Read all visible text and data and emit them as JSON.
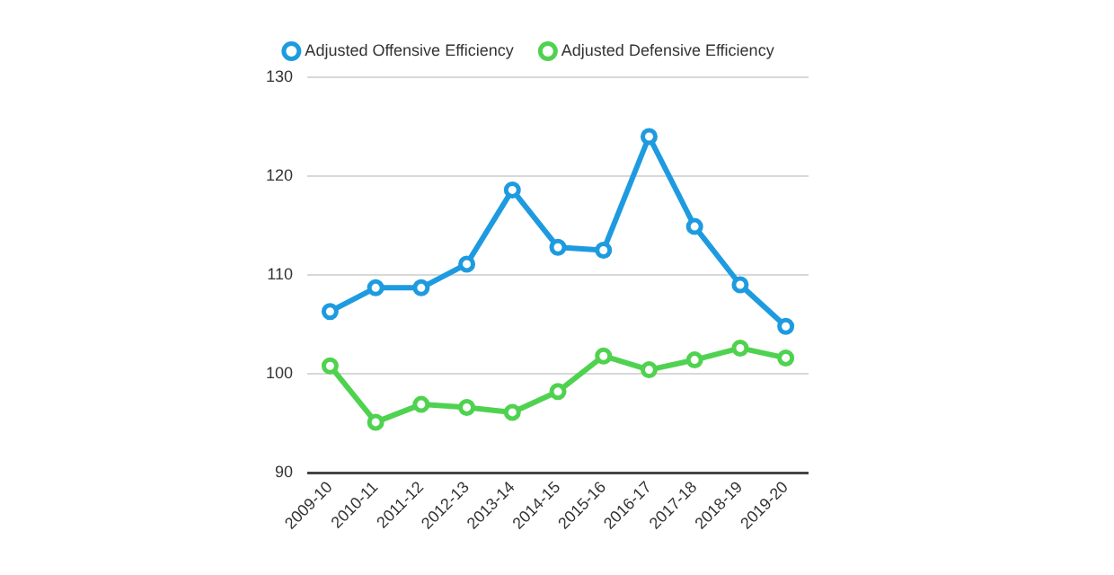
{
  "chart_data": {
    "type": "line",
    "categories": [
      "2009-10",
      "2010-11",
      "2011-12",
      "2012-13",
      "2013-14",
      "2014-15",
      "2015-16",
      "2016-17",
      "2017-18",
      "2018-19",
      "2019-20"
    ],
    "series": [
      {
        "name": "Adjusted Offensive Efficiency",
        "color": "#1e9be0",
        "values": [
          106.3,
          108.7,
          108.7,
          111.1,
          118.6,
          112.8,
          112.5,
          124.0,
          114.9,
          109.0,
          104.8
        ]
      },
      {
        "name": "Adjusted Defensive Efficiency",
        "color": "#4fd24f",
        "values": [
          100.8,
          95.1,
          96.9,
          96.6,
          96.1,
          98.2,
          101.8,
          100.4,
          101.4,
          102.6,
          101.6
        ]
      }
    ],
    "ylim": [
      90,
      130
    ],
    "yticks": [
      90,
      100,
      110,
      120,
      130
    ],
    "grid": "y",
    "legend": "top",
    "marker": "circle",
    "line_style": "solid"
  }
}
